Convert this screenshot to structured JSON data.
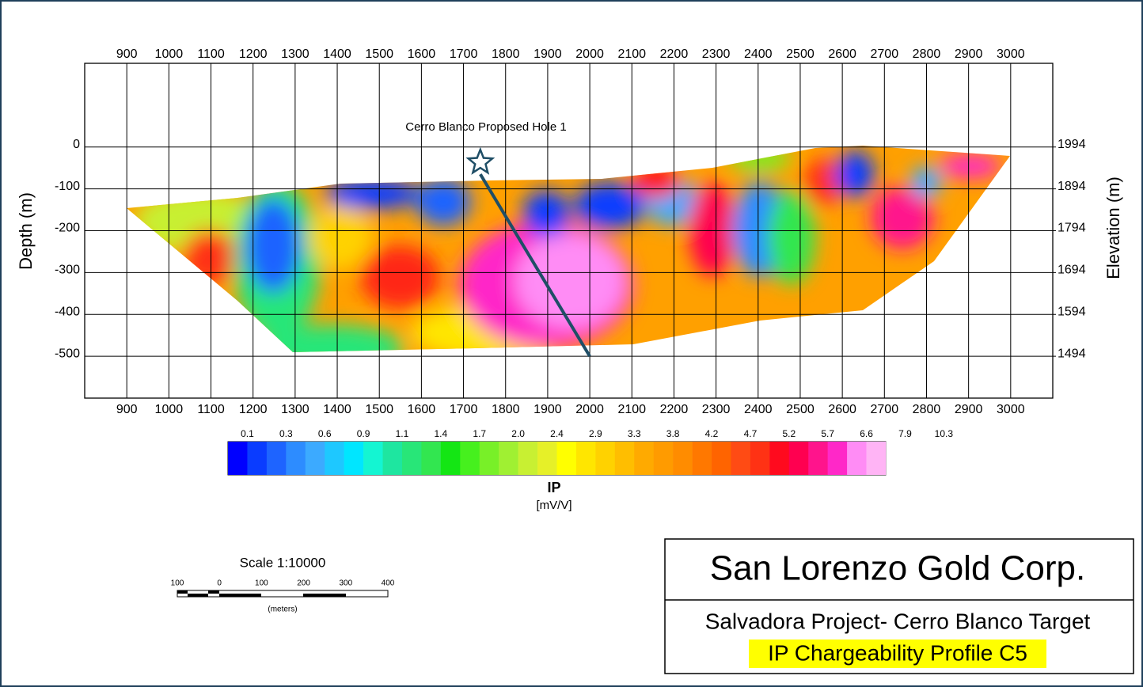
{
  "chart_data": {
    "type": "contour",
    "xlim": [
      800,
      3100
    ],
    "xticks": [
      900,
      1000,
      1100,
      1200,
      1300,
      1400,
      1500,
      1600,
      1700,
      1800,
      1900,
      2000,
      2100,
      2200,
      2300,
      2400,
      2500,
      2600,
      2700,
      2800,
      2900,
      3000
    ],
    "ylim": [
      -600,
      200
    ],
    "yticks": [
      0,
      -100,
      -200,
      -300,
      -400,
      -500
    ],
    "ylabel": "Depth (m)",
    "y2lim": [
      1394,
      2194
    ],
    "y2ticks": [
      1994,
      1894,
      1794,
      1694,
      1594,
      1494
    ],
    "y2label": "Elevation (m)",
    "grid": true,
    "hole": {
      "label": "Cerro Blanco Proposed Hole 1",
      "x": [
        1740,
        2000
      ],
      "depth": [
        -65,
        -500
      ],
      "color": "#1f4e66"
    },
    "colorbar": {
      "title": "IP",
      "unit": "[mV/V]",
      "ticks": [
        "0.1",
        "0.3",
        "0.6",
        "0.9",
        "1.1",
        "1.4",
        "1.7",
        "2.0",
        "2.4",
        "2.9",
        "3.3",
        "3.8",
        "4.2",
        "4.7",
        "5.2",
        "5.7",
        "6.6",
        "7.9",
        "10.3"
      ],
      "colors": [
        "#0000ff",
        "#0a3cff",
        "#1e64ff",
        "#2d8cff",
        "#3caaff",
        "#1ec8ff",
        "#00e6ff",
        "#14f5d2",
        "#1ee6a0",
        "#28e678",
        "#32e650",
        "#14e614",
        "#46f01e",
        "#78f028",
        "#a0f032",
        "#c8f032",
        "#e6f028",
        "#ffff00",
        "#ffe600",
        "#ffd200",
        "#ffbe00",
        "#ffaa00",
        "#ff9b00",
        "#ff8c00",
        "#ff7800",
        "#ff6400",
        "#ff4b14",
        "#ff3214",
        "#ff0a1e",
        "#ff0050",
        "#ff148c",
        "#ff28c8",
        "#ff8cf5",
        "#ffb4f5"
      ]
    },
    "scale": {
      "title": "Scale 1:10000",
      "ticks": [
        "100",
        "0",
        "100",
        "200",
        "300",
        "400"
      ],
      "unit": "(meters)"
    },
    "company": "San Lorenzo Gold Corp.",
    "project": "Salvadora Project- Cerro Blanco Target",
    "profile": "IP Chargeability Profile C5"
  }
}
